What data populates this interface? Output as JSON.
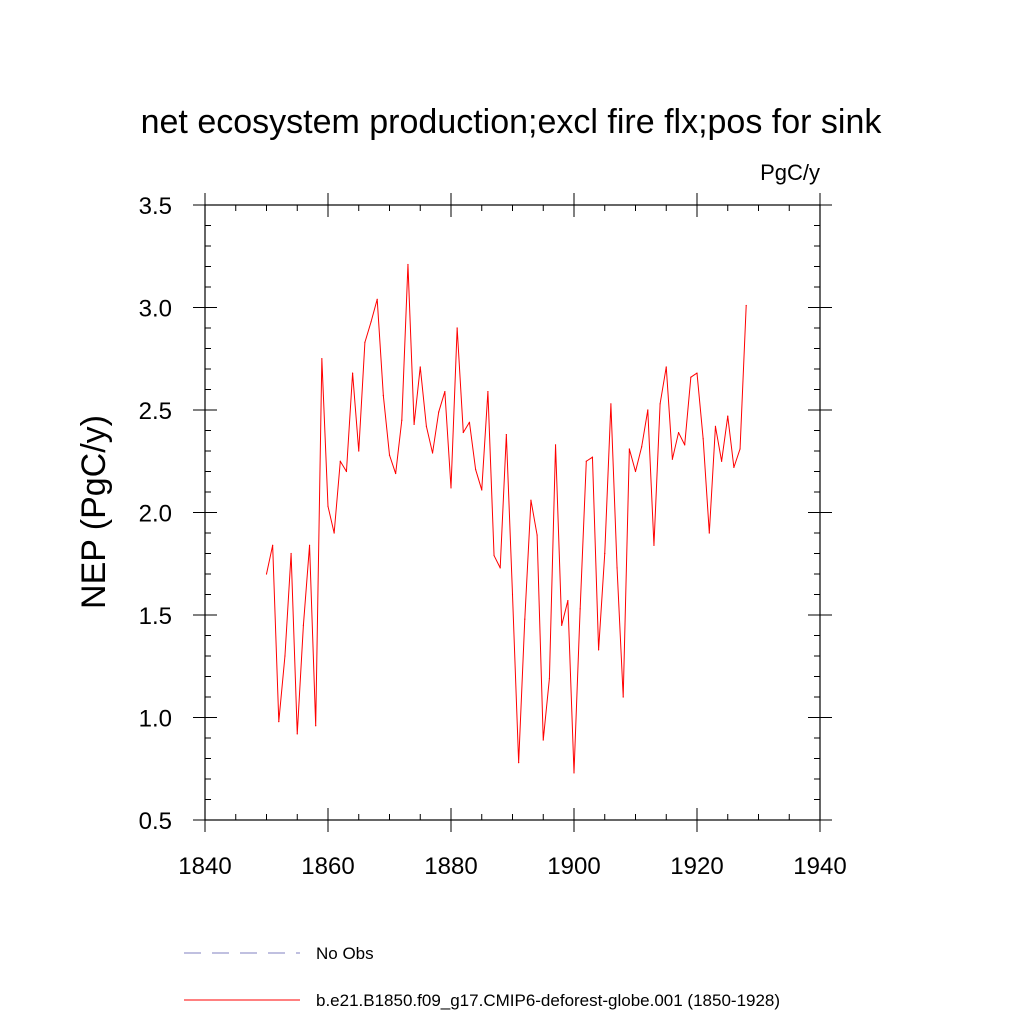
{
  "chart_data": {
    "type": "line",
    "title": "net ecosystem production;excl fire flx;pos for sink",
    "units": "PgC/y",
    "xlabel": "",
    "ylabel": "NEP  (PgC/y)",
    "xlim": [
      1840,
      1940
    ],
    "ylim": [
      0.5,
      3.5
    ],
    "x_ticks": [
      "1840",
      "1860",
      "1880",
      "1900",
      "1920",
      "1940"
    ],
    "y_ticks": [
      "0.5",
      "1.0",
      "1.5",
      "2.0",
      "2.5",
      "3.0",
      "3.5"
    ],
    "grid": false,
    "colors": {
      "series": "#ff0000",
      "obs": "#8080c0",
      "axis": "#000000"
    },
    "legend": [
      {
        "label": "No Obs",
        "style": "dashed",
        "color": "#8080c0"
      },
      {
        "label": "b.e21.B1850.f09_g17.CMIP6-deforest-globe.001 (1850-1928)",
        "style": "solid",
        "color": "#ff0000"
      }
    ],
    "series": [
      {
        "name": "b.e21.B1850.f09_g17.CMIP6-deforest-globe.001 (1850-1928)",
        "x": [
          1850,
          1851,
          1852,
          1853,
          1854,
          1855,
          1856,
          1857,
          1858,
          1859,
          1860,
          1861,
          1862,
          1863,
          1864,
          1865,
          1866,
          1867,
          1868,
          1869,
          1870,
          1871,
          1872,
          1873,
          1874,
          1875,
          1876,
          1877,
          1878,
          1879,
          1880,
          1881,
          1882,
          1883,
          1884,
          1885,
          1886,
          1887,
          1888,
          1889,
          1890,
          1891,
          1892,
          1893,
          1894,
          1895,
          1896,
          1897,
          1898,
          1899,
          1900,
          1901,
          1902,
          1903,
          1904,
          1905,
          1906,
          1907,
          1908,
          1909,
          1910,
          1911,
          1912,
          1913,
          1914,
          1915,
          1916,
          1917,
          1918,
          1919,
          1920,
          1921,
          1922,
          1923,
          1924,
          1925,
          1926,
          1927,
          1928
        ],
        "values": [
          1.7,
          1.84,
          0.98,
          1.3,
          1.8,
          0.92,
          1.45,
          1.84,
          0.96,
          2.75,
          2.03,
          1.9,
          2.25,
          2.2,
          2.68,
          2.3,
          2.83,
          2.93,
          3.04,
          2.57,
          2.28,
          2.19,
          2.45,
          3.21,
          2.43,
          2.71,
          2.42,
          2.29,
          2.49,
          2.59,
          2.12,
          2.9,
          2.39,
          2.44,
          2.21,
          2.11,
          2.59,
          1.79,
          1.73,
          2.38,
          1.6,
          0.78,
          1.48,
          2.06,
          1.89,
          0.89,
          1.19,
          2.33,
          1.45,
          1.57,
          0.73,
          1.53,
          2.25,
          2.27,
          1.33,
          1.8,
          2.53,
          1.73,
          1.1,
          2.31,
          2.2,
          2.32,
          2.5,
          1.84,
          2.53,
          2.71,
          2.26,
          2.39,
          2.33,
          2.66,
          2.68,
          2.36,
          1.9,
          2.42,
          2.25,
          2.47,
          2.22,
          2.31,
          3.01
        ]
      }
    ]
  }
}
